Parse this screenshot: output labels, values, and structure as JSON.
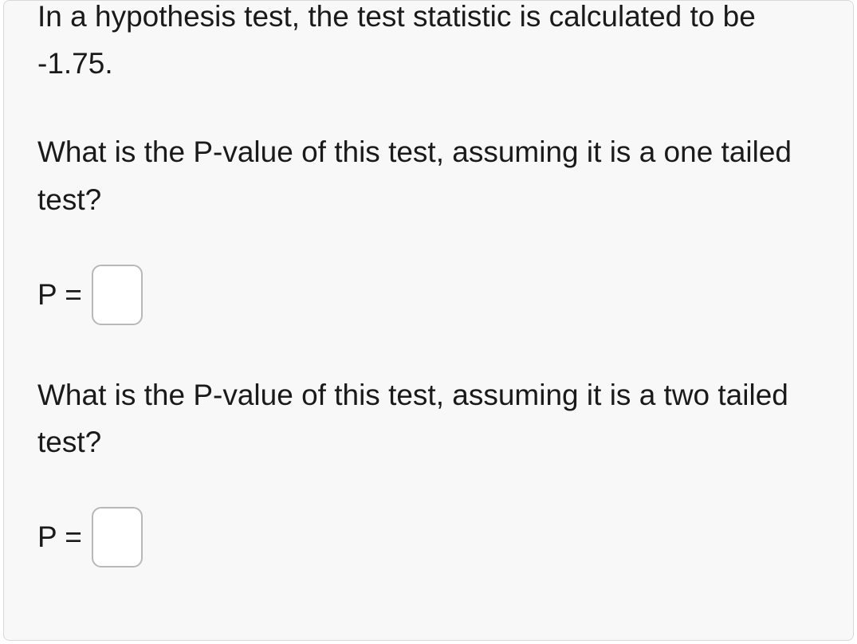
{
  "question": {
    "intro": "In a hypothesis test, the test statistic is calculated to be -1.75.",
    "part1": "What is the P-value of this test, assuming it is a one tailed test?",
    "label1": "P =",
    "value1": "",
    "part2": "What is the P-value of this test, assuming it is a two tailed test?",
    "label2": "P =",
    "value2": ""
  },
  "style": {
    "background_color": "#f8f8f8",
    "border_color": "#d8d8d8",
    "text_color": "#1a1a1a",
    "input_border_color": "#b8b8b8",
    "input_background": "#ffffff",
    "font_size_body": 37,
    "border_radius_container": 8,
    "border_radius_input": 12
  }
}
